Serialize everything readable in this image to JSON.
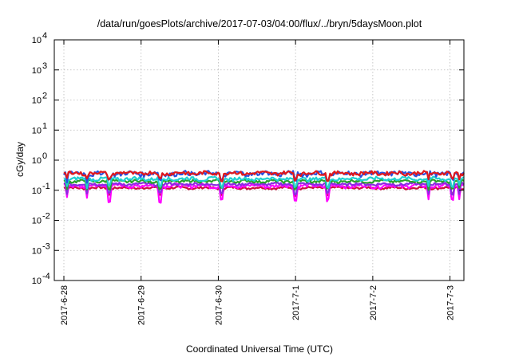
{
  "chart_data": {
    "type": "line",
    "title": "/data/run/goesPlots/archive/2017-07-03/04:00/flux/../bryn/5daysMoon.plot",
    "xlabel": "Coordinated Universal Time (UTC)",
    "ylabel": "cGy/day",
    "yscale": "log",
    "ylim": [
      0.0001,
      10000
    ],
    "xlim_days": [
      0,
      5.18
    ],
    "grid": true,
    "y_ticks": [
      {
        "value": 0.0001,
        "base": "10",
        "exp": "-4"
      },
      {
        "value": 0.001,
        "base": "10",
        "exp": "-3"
      },
      {
        "value": 0.01,
        "base": "10",
        "exp": "-2"
      },
      {
        "value": 0.1,
        "base": "10",
        "exp": "-1"
      },
      {
        "value": 1,
        "base": "10",
        "exp": "0"
      },
      {
        "value": 10,
        "base": "10",
        "exp": "1"
      },
      {
        "value": 100,
        "base": "10",
        "exp": "2"
      },
      {
        "value": 1000,
        "base": "10",
        "exp": "3"
      },
      {
        "value": 10000,
        "base": "10",
        "exp": "4"
      }
    ],
    "x_ticks": [
      {
        "day": 0,
        "label": "2017-6-28"
      },
      {
        "day": 1,
        "label": "2017-6-29"
      },
      {
        "day": 2,
        "label": "2017-6-30"
      },
      {
        "day": 3,
        "label": "2017-7-1"
      },
      {
        "day": 4,
        "label": "2017-7-2"
      },
      {
        "day": 5,
        "label": "2017-7-3"
      }
    ],
    "dip_days": [
      0.04,
      0.3,
      0.58,
      1.25,
      2.05,
      3.0,
      3.42,
      4.72,
      5.03,
      5.12
    ],
    "series": [
      {
        "color": "#e0181c",
        "base": 0.37,
        "amp": 0.05,
        "dip": 0.65
      },
      {
        "color": "#2a4fe0",
        "base": 0.36,
        "amp": 0.06,
        "dip": 0.6
      },
      {
        "color": "#1fd0d0",
        "base": 0.24,
        "amp": 0.03,
        "dip": 0.55
      },
      {
        "color": "#2aa02a",
        "base": 0.2,
        "amp": 0.02,
        "dip": 0.55
      },
      {
        "color": "#8a2be2",
        "base": 0.16,
        "amp": 0.015,
        "dip": 0.5
      },
      {
        "color": "#ff00ff",
        "base": 0.14,
        "amp": 0.02,
        "dip": 0.35
      },
      {
        "color": "#cc1040",
        "base": 0.12,
        "amp": 0.01,
        "dip": 0.6
      }
    ]
  }
}
